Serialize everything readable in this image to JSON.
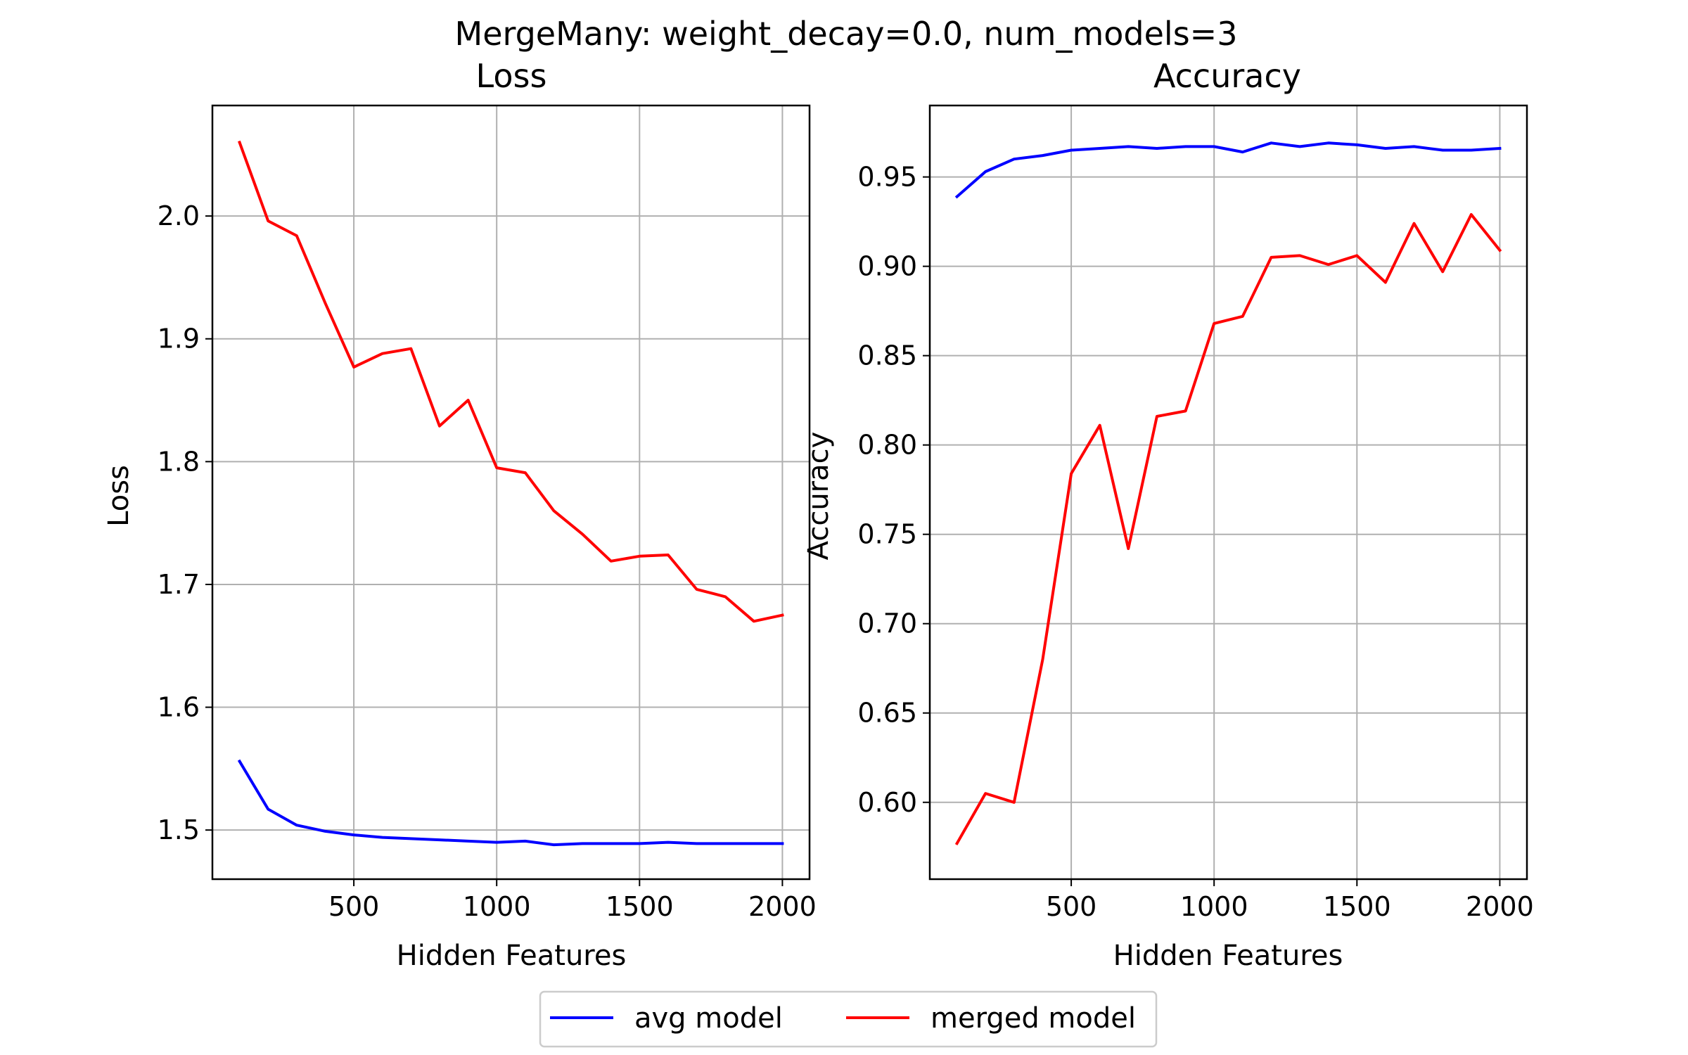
{
  "figure": {
    "suptitle": "MergeMany: weight_decay=0.0, num_models=3"
  },
  "legend": {
    "entries": [
      {
        "label": "avg model",
        "color": "#0000ff"
      },
      {
        "label": "merged model",
        "color": "#ff0000"
      }
    ],
    "placement": "bottom-center"
  },
  "chart_data": [
    {
      "type": "line",
      "title": "Loss",
      "xlabel": "Hidden Features",
      "ylabel": "Loss",
      "xlim": [
        5,
        2095
      ],
      "ylim": [
        1.46,
        2.09
      ],
      "xticks": [
        500,
        1000,
        1500,
        2000
      ],
      "yticks": [
        1.5,
        1.6,
        1.7,
        1.8,
        1.9,
        2.0
      ],
      "ytick_labels": [
        "1.5",
        "1.6",
        "1.7",
        "1.8",
        "1.9",
        "2.0"
      ],
      "grid": true,
      "x": [
        100,
        200,
        300,
        400,
        500,
        600,
        700,
        800,
        900,
        1000,
        1100,
        1200,
        1300,
        1400,
        1500,
        1600,
        1700,
        1800,
        1900,
        2000
      ],
      "series": [
        {
          "name": "avg model",
          "color": "#0000ff",
          "values": [
            1.556,
            1.517,
            1.504,
            1.499,
            1.496,
            1.494,
            1.493,
            1.492,
            1.491,
            1.49,
            1.491,
            1.488,
            1.489,
            1.489,
            1.489,
            1.49,
            1.489,
            1.489,
            1.489,
            1.489
          ]
        },
        {
          "name": "merged model",
          "color": "#ff0000",
          "values": [
            2.06,
            1.996,
            1.984,
            1.929,
            1.877,
            1.888,
            1.892,
            1.829,
            1.85,
            1.795,
            1.791,
            1.76,
            1.741,
            1.719,
            1.723,
            1.724,
            1.696,
            1.69,
            1.67,
            1.675
          ]
        }
      ]
    },
    {
      "type": "line",
      "title": "Accuracy",
      "xlabel": "Hidden Features",
      "ylabel": "Accuracy",
      "xlim": [
        5,
        2095
      ],
      "ylim": [
        0.557,
        0.99
      ],
      "xticks": [
        500,
        1000,
        1500,
        2000
      ],
      "yticks": [
        0.6,
        0.65,
        0.7,
        0.75,
        0.8,
        0.85,
        0.9,
        0.95
      ],
      "ytick_labels": [
        "0.60",
        "0.65",
        "0.70",
        "0.75",
        "0.80",
        "0.85",
        "0.90",
        "0.95"
      ],
      "grid": true,
      "x": [
        100,
        200,
        300,
        400,
        500,
        600,
        700,
        800,
        900,
        1000,
        1100,
        1200,
        1300,
        1400,
        1500,
        1600,
        1700,
        1800,
        1900,
        2000
      ],
      "series": [
        {
          "name": "avg model",
          "color": "#0000ff",
          "values": [
            0.939,
            0.953,
            0.96,
            0.962,
            0.965,
            0.966,
            0.967,
            0.966,
            0.967,
            0.967,
            0.964,
            0.969,
            0.967,
            0.969,
            0.968,
            0.966,
            0.967,
            0.965,
            0.965,
            0.966
          ]
        },
        {
          "name": "merged model",
          "color": "#ff0000",
          "values": [
            0.577,
            0.605,
            0.6,
            0.68,
            0.784,
            0.811,
            0.742,
            0.816,
            0.819,
            0.868,
            0.872,
            0.905,
            0.906,
            0.901,
            0.906,
            0.891,
            0.924,
            0.897,
            0.929,
            0.909
          ]
        }
      ]
    }
  ]
}
